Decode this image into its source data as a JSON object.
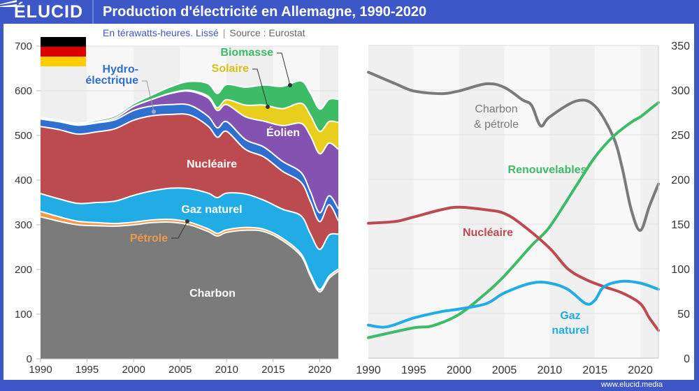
{
  "header": {
    "logo": "ÉLUCID",
    "title": "Production d'électricité en Allemagne, 1990-2020",
    "subtitle": "En térawatts-heures. Lissé",
    "separator": "|",
    "source": "Source : Eurostat"
  },
  "footer": {
    "url": "www.elucid.media"
  },
  "flag": {
    "country": "Allemagne",
    "colors": [
      "#000000",
      "#dd0000",
      "#ffce00"
    ]
  },
  "chart_data": [
    {
      "type": "area",
      "stacked": true,
      "title": "Production d'électricité en Allemagne, 1990-2020",
      "ylabel": "TWh",
      "xlim": [
        1990,
        2022
      ],
      "ylim": [
        0,
        700
      ],
      "xticks": [
        1990,
        1995,
        2000,
        2005,
        2010,
        2015,
        2020
      ],
      "yticks": [
        0,
        100,
        200,
        300,
        400,
        500,
        600,
        700
      ],
      "x": [
        1990,
        1992,
        1994,
        1996,
        1998,
        2000,
        2002,
        2004,
        2006,
        2008,
        2009,
        2010,
        2012,
        2014,
        2016,
        2018,
        2019,
        2020,
        2021,
        2022
      ],
      "series": [
        {
          "name": "Charbon",
          "color": "#7b7b7b",
          "values": [
            318,
            308,
            300,
            298,
            297,
            300,
            305,
            306,
            300,
            285,
            275,
            283,
            288,
            285,
            265,
            230,
            185,
            150,
            180,
            196
          ]
        },
        {
          "name": "Pétrole",
          "color": "#ef9a4a",
          "values": [
            12,
            10,
            8,
            7,
            6,
            6,
            6,
            6,
            6,
            6,
            6,
            6,
            6,
            5,
            5,
            5,
            5,
            5,
            5,
            5
          ]
        },
        {
          "name": "Gaz naturel",
          "color": "#22ace6",
          "values": [
            40,
            40,
            40,
            45,
            50,
            60,
            65,
            70,
            75,
            80,
            80,
            82,
            75,
            65,
            65,
            85,
            90,
            90,
            92,
            78
          ]
        },
        {
          "name": "Nucléaire",
          "color": "#bc4b4f",
          "values": [
            150,
            155,
            155,
            158,
            162,
            168,
            168,
            165,
            165,
            150,
            135,
            138,
            100,
            97,
            85,
            75,
            72,
            62,
            68,
            30
          ]
        },
        {
          "name": "Hydro-électrique",
          "color": "#2e6fd0",
          "values": [
            17,
            18,
            20,
            20,
            20,
            22,
            22,
            22,
            22,
            22,
            21,
            22,
            22,
            22,
            22,
            22,
            22,
            20,
            20,
            27
          ]
        },
        {
          "name": "Éolien",
          "color": "#8452b0",
          "values": [
            0,
            0,
            1,
            2,
            4,
            9,
            15,
            25,
            31,
            41,
            39,
            38,
            51,
            58,
            80,
            110,
            125,
            132,
            118,
            133
          ]
        },
        {
          "name": "Solaire",
          "color": "#e8cf1d",
          "values": [
            0,
            0,
            0,
            0,
            0,
            0,
            0,
            1,
            2,
            4,
            6,
            11,
            26,
            36,
            38,
            45,
            46,
            50,
            48,
            60
          ]
        },
        {
          "name": "Biomasse",
          "color": "#3dbb67",
          "values": [
            3,
            3,
            3,
            4,
            5,
            6,
            10,
            14,
            20,
            28,
            32,
            34,
            40,
            45,
            50,
            50,
            50,
            50,
            50,
            52
          ]
        }
      ],
      "labels": {
        "charbon": "Charbon",
        "petrole": "Pétrole",
        "gaz": "Gaz naturel",
        "nucleaire": "Nucléaire",
        "hydro1": "Hydro-",
        "hydro2": "électrique",
        "eolien": "Éolien",
        "solaire": "Solaire",
        "biomasse": "Biomasse"
      }
    },
    {
      "type": "line",
      "xlim": [
        1990,
        2022
      ],
      "ylim": [
        0,
        350
      ],
      "yaxis_position": "right",
      "xticks": [
        1990,
        1995,
        2000,
        2005,
        2010,
        2015,
        2020
      ],
      "yticks": [
        0,
        50,
        100,
        150,
        200,
        250,
        300,
        350
      ],
      "series": [
        {
          "name": "Charbon & pétrole",
          "color": "#7a7a7a",
          "x": [
            1990,
            1993,
            1995,
            1998,
            2000,
            2003,
            2005,
            2007,
            2008,
            2009,
            2010,
            2013,
            2015,
            2017,
            2018,
            2019,
            2020,
            2021,
            2022
          ],
          "values": [
            320,
            307,
            299,
            296,
            299,
            307,
            303,
            289,
            283,
            260,
            270,
            288,
            282,
            248,
            213,
            166,
            143,
            170,
            195
          ]
        },
        {
          "name": "Renouvelables",
          "color": "#3dbb67",
          "x": [
            1990,
            1995,
            1997,
            2000,
            2003,
            2005,
            2008,
            2010,
            2013,
            2015,
            2017,
            2019,
            2020,
            2021,
            2022
          ],
          "values": [
            23,
            34,
            36,
            49,
            73,
            92,
            126,
            147,
            194,
            225,
            248,
            264,
            270,
            278,
            286
          ]
        },
        {
          "name": "Nucléaire",
          "color": "#bc4b4f",
          "x": [
            1990,
            1993,
            1995,
            1998,
            2000,
            2003,
            2005,
            2007,
            2010,
            2012,
            2014,
            2016,
            2018,
            2020,
            2021,
            2022
          ],
          "values": [
            151,
            153,
            158,
            166,
            169,
            166,
            162,
            149,
            123,
            100,
            88,
            80,
            73,
            61,
            45,
            31
          ]
        },
        {
          "name": "Gaz naturel",
          "color": "#22ace6",
          "x": [
            1990,
            1992,
            1995,
            1998,
            2000,
            2003,
            2005,
            2008,
            2010,
            2012,
            2014,
            2015,
            2016,
            2018,
            2020,
            2022
          ],
          "values": [
            37,
            35,
            45,
            52,
            55,
            61,
            73,
            84,
            84,
            77,
            61,
            65,
            80,
            86,
            84,
            77
          ]
        }
      ],
      "labels": {
        "charbon1": "Charbon",
        "charbon2": "& pétrole",
        "renouvelables": "Renouvelables",
        "nucleaire": "Nucléaire",
        "gaz1": "Gaz",
        "gaz2": "naturel"
      }
    }
  ]
}
